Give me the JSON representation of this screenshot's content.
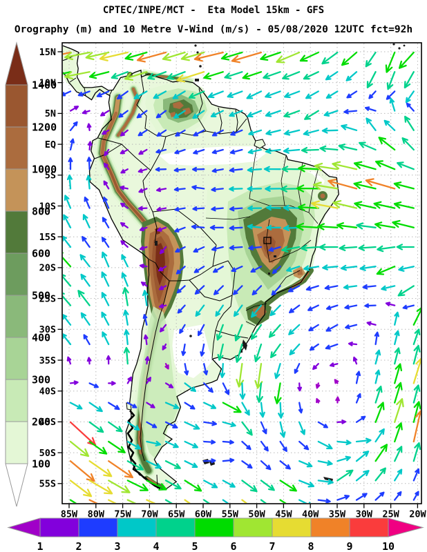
{
  "header": {
    "line1": "CPTEC/INPE/MCT -  Eta Model 15km - GFS",
    "line2": "Orography (m) and 10 Metre V-Wind (m/s) - 05/08/2020 12UTC fct=92h"
  },
  "chart_data": {
    "type": "map-vector-field",
    "title": "CPTEC/INPE/MCT -  Eta Model 15km - GFS",
    "subtitle": "Orography (m) and 10 Metre V-Wind (m/s) - 05/08/2020 12UTC fct=92h",
    "projection": "latlon",
    "lon_range_deg": [
      -86.3,
      -19.3
    ],
    "lat_range_deg": [
      -58.3,
      16.45
    ],
    "x_ticks": [
      "85W",
      "80W",
      "75W",
      "70W",
      "65W",
      "60W",
      "55W",
      "50W",
      "45W",
      "40W",
      "35W",
      "30W",
      "25W",
      "20W"
    ],
    "y_ticks": [
      "15N",
      "10N",
      "5N",
      "EQ",
      "5S",
      "10S",
      "15S",
      "20S",
      "25S",
      "30S",
      "35S",
      "40S",
      "45S",
      "50S",
      "55S"
    ],
    "grid": true,
    "orography_scale": {
      "units": "m",
      "tick_labels": [
        "1400",
        "1200",
        "1000",
        "800",
        "600",
        "500",
        "400",
        "300",
        "200",
        "100"
      ],
      "band_colors_top_to_bottom": [
        "#7a2d18",
        "#9a5730",
        "#ab6c3e",
        "#c49359",
        "#527a3a",
        "#6d9c5e",
        "#8ab97a",
        "#a8d496",
        "#c8eab6",
        "#e4f7d6",
        "#ffffff"
      ]
    },
    "wind_scale": {
      "units": "m/s",
      "tick_labels": [
        "1",
        "2",
        "3",
        "4",
        "5",
        "6",
        "7",
        "8",
        "9",
        "10"
      ],
      "segment_colors": [
        "#8200dc",
        "#1e3cff",
        "#00c8c8",
        "#00d28c",
        "#00dc00",
        "#a0e632",
        "#e6dc32",
        "#f08228",
        "#fa3c3c"
      ],
      "under_arrow_color": "#a000c8",
      "over_arrow_color": "#f00082"
    },
    "wind_vectors_control_points": [
      [
        -84,
        14.5,
        -9,
        -2
      ],
      [
        -75,
        15.5,
        -9.5,
        -2
      ],
      [
        -66,
        15,
        -9.5,
        -2.5
      ],
      [
        -57,
        15.5,
        -9,
        -2
      ],
      [
        -49,
        15,
        -8.5,
        -2.5
      ],
      [
        -60,
        12,
        -8,
        -2.5
      ],
      [
        -70,
        12.5,
        -8.5,
        -2
      ],
      [
        -80,
        12.5,
        -9,
        -1.5
      ],
      [
        -83,
        13,
        -9,
        -1.5
      ],
      [
        -41,
        15,
        -7,
        -3
      ],
      [
        -33,
        15.5,
        -5,
        -4.5
      ],
      [
        -25,
        15,
        -2,
        -6
      ],
      [
        -21,
        14,
        -4.5,
        -4.5
      ],
      [
        -27,
        12,
        -2,
        -5
      ],
      [
        -23,
        12,
        -1,
        -6
      ],
      [
        -22,
        10,
        -1.5,
        -5.5
      ],
      [
        -33,
        10,
        -1,
        -1.8
      ],
      [
        -28,
        8.5,
        -1.2,
        -1.5
      ],
      [
        -37,
        8,
        -2.5,
        -2
      ],
      [
        -23,
        5.5,
        0.5,
        5.5
      ],
      [
        -27,
        3,
        -1.5,
        4.5
      ],
      [
        -21,
        1,
        -2,
        5
      ],
      [
        -25,
        -1.5,
        -4.5,
        4
      ],
      [
        -32,
        1.5,
        -4,
        1.5
      ],
      [
        -43,
        5.5,
        -4,
        -1.5
      ],
      [
        -38,
        5,
        -3.5,
        -2.5
      ],
      [
        -49,
        7.5,
        -3.5,
        -2
      ],
      [
        -30,
        -4,
        -8,
        2
      ],
      [
        -24,
        -7,
        -8.5,
        2.5
      ],
      [
        -32,
        -8,
        -9.5,
        3
      ],
      [
        -36,
        -5.5,
        -8,
        1.5
      ],
      [
        -30,
        -11,
        -6.5,
        2
      ],
      [
        -22,
        -13,
        -6.5,
        2
      ],
      [
        -38,
        -13,
        -6.5,
        0.5
      ],
      [
        -35,
        -10,
        -7.5,
        1.5
      ],
      [
        -40,
        -7,
        -6.5,
        -0.5
      ],
      [
        -44,
        -4.5,
        -4.5,
        0.5
      ],
      [
        -41,
        -17,
        -5.5,
        -1
      ],
      [
        -36,
        -16,
        -5,
        0
      ],
      [
        -30,
        -18,
        -4.5,
        -1
      ],
      [
        -24,
        -19,
        -5,
        -2.5
      ],
      [
        -21,
        -24,
        -4.5,
        -3.5
      ],
      [
        -41,
        -39.5,
        0.5,
        -0.8
      ],
      [
        -35,
        -33,
        -3,
        -1
      ],
      [
        -22,
        -30,
        4.5,
        7
      ],
      [
        -30,
        -28,
        -3.5,
        -1
      ],
      [
        -34,
        -30,
        -3,
        -2
      ],
      [
        -44,
        -31,
        -4.5,
        -4
      ],
      [
        -48,
        -28,
        -4,
        -4.5
      ],
      [
        -52,
        -31,
        -2,
        -6
      ],
      [
        -50,
        -35,
        -1,
        -8.5
      ],
      [
        -47,
        -39,
        -1.5,
        -8
      ],
      [
        -44,
        -44,
        1,
        -6
      ],
      [
        -39,
        -47,
        4.5,
        -2.5
      ],
      [
        -33,
        -48,
        5,
        -1
      ],
      [
        -26,
        -44,
        3,
        9.5
      ],
      [
        -22,
        -38,
        3,
        9
      ],
      [
        -21,
        -48,
        2,
        9
      ],
      [
        -29,
        -52,
        3.5,
        5.5
      ],
      [
        -34,
        -54,
        4.5,
        3.5
      ],
      [
        -40,
        -53,
        5,
        -1
      ],
      [
        -45,
        -56,
        5.5,
        -3.5
      ],
      [
        -37,
        -42,
        -1,
        2
      ],
      [
        -30,
        -39,
        1,
        4
      ],
      [
        -27,
        -34,
        2,
        5
      ],
      [
        -52,
        -36,
        -1,
        -7.5
      ],
      [
        -53,
        -44,
        3,
        -4
      ],
      [
        -61,
        -27,
        -2.5,
        -3.5
      ],
      [
        -55,
        -29,
        -1.5,
        -5
      ],
      [
        -57,
        -33,
        -1,
        -4.5
      ],
      [
        -63,
        -34,
        -0.5,
        -4
      ],
      [
        -66,
        -30,
        -1.5,
        -2.5
      ],
      [
        -58,
        -23,
        -2.5,
        -2.5
      ],
      [
        -53,
        -25,
        -2,
        -2.5
      ],
      [
        -47,
        -22,
        -1.5,
        -3
      ],
      [
        -45,
        -19,
        -1,
        -1.5
      ],
      [
        -51,
        -17,
        -3.5,
        0.5
      ],
      [
        -55,
        -14,
        -3.5,
        0.5
      ],
      [
        -48,
        -13,
        -3.5,
        1
      ],
      [
        -44,
        -11,
        -3,
        0.5
      ],
      [
        -60,
        -18,
        -2.5,
        -1.5
      ],
      [
        -64,
        -21,
        -2,
        -2.5
      ],
      [
        -60,
        -13,
        -3,
        0.5
      ],
      [
        -64,
        -15,
        -2.5,
        -1.5
      ],
      [
        -66,
        -3,
        -2.5,
        0.5
      ],
      [
        -60,
        -6,
        -3,
        1
      ],
      [
        -70,
        -7,
        -1.5,
        -0.8
      ],
      [
        -74,
        -4,
        -1.2,
        -0.8
      ],
      [
        -62,
        1.5,
        -1.5,
        -1.5
      ],
      [
        -56,
        -2.5,
        -2,
        -0.5
      ],
      [
        -51,
        -6,
        -3.5,
        0.5
      ],
      [
        -55,
        3,
        -2,
        -1.5
      ],
      [
        -59,
        5.5,
        -2.5,
        -2
      ],
      [
        -51,
        1.5,
        -2.5,
        -1
      ],
      [
        -68,
        4,
        -1,
        -2
      ],
      [
        -72,
        7,
        -2,
        -2.5
      ],
      [
        -76,
        4,
        -0.8,
        -1.8
      ],
      [
        -65,
        8.5,
        -2,
        -2
      ],
      [
        -63,
        6.5,
        -2.5,
        -2
      ],
      [
        -73,
        1,
        -1,
        -1.5
      ],
      [
        -70,
        -1.5,
        -1.5,
        -1
      ],
      [
        -86,
        5.5,
        4,
        1.5
      ],
      [
        -86,
        2,
        3,
        2.5
      ],
      [
        -80,
        7,
        -1,
        -1.2
      ],
      [
        -84,
        9.5,
        -2,
        -1.5
      ],
      [
        -86.5,
        -2,
        1.5,
        4.5
      ],
      [
        -83,
        -7,
        0.5,
        5
      ],
      [
        -86,
        -12,
        -2,
        4.5
      ],
      [
        -80,
        -13,
        -1.5,
        4
      ],
      [
        -77,
        -11,
        -1,
        3
      ],
      [
        -80,
        -5,
        0.5,
        4.5
      ],
      [
        -82,
        0.5,
        1.5,
        3.5
      ],
      [
        -84,
        -20,
        -4.5,
        5
      ],
      [
        -86,
        -26,
        -4,
        4.5
      ],
      [
        -81,
        -27,
        -3.5,
        4.5
      ],
      [
        -76,
        -24,
        -2,
        5
      ],
      [
        -78,
        -31,
        -2.5,
        4
      ],
      [
        -84,
        -33,
        -2.5,
        3
      ],
      [
        -72.3,
        -26,
        0.2,
        8.8
      ],
      [
        -72.8,
        -31,
        0,
        6.5
      ],
      [
        -74,
        -35,
        -0.5,
        5
      ],
      [
        -76,
        -20,
        -1.5,
        5.5
      ],
      [
        -69,
        -22,
        -0.5,
        -1.5
      ],
      [
        -67,
        -17,
        -1,
        -1.5
      ],
      [
        -70,
        -15,
        -0.8,
        -1.2
      ],
      [
        -85,
        -45,
        7.5,
        -7
      ],
      [
        -79,
        -51,
        8.5,
        -6
      ],
      [
        -86,
        -52,
        8,
        -7
      ],
      [
        -80,
        -57,
        9,
        -4
      ],
      [
        -72,
        -56.5,
        9,
        -3.5
      ],
      [
        -63,
        -57,
        7,
        -5
      ],
      [
        -52,
        -57,
        6.5,
        -5
      ],
      [
        -86,
        -40,
        1.5,
        1
      ],
      [
        -81,
        -41,
        3.5,
        -2.5
      ],
      [
        -76,
        -44,
        4.5,
        -3.5
      ],
      [
        -70,
        -48,
        3.5,
        -0.5
      ],
      [
        -68,
        -52,
        4,
        -2
      ],
      [
        -68,
        -42,
        4,
        -1.5
      ],
      [
        -64,
        -46,
        4.5,
        -2
      ],
      [
        -58,
        -44,
        4,
        2
      ],
      [
        -58,
        -50,
        2.5,
        3
      ],
      [
        -62,
        -38,
        4.5,
        -2.5
      ],
      [
        -57,
        -42,
        6,
        -3
      ],
      [
        -71.5,
        -43,
        1,
        -1.5
      ],
      [
        -72,
        -38,
        0,
        3
      ],
      [
        -70,
        10.5,
        -3,
        -2
      ],
      [
        -75,
        9,
        -2,
        -2
      ],
      [
        -78.5,
        -0.5,
        -0.5,
        -2
      ]
    ]
  }
}
